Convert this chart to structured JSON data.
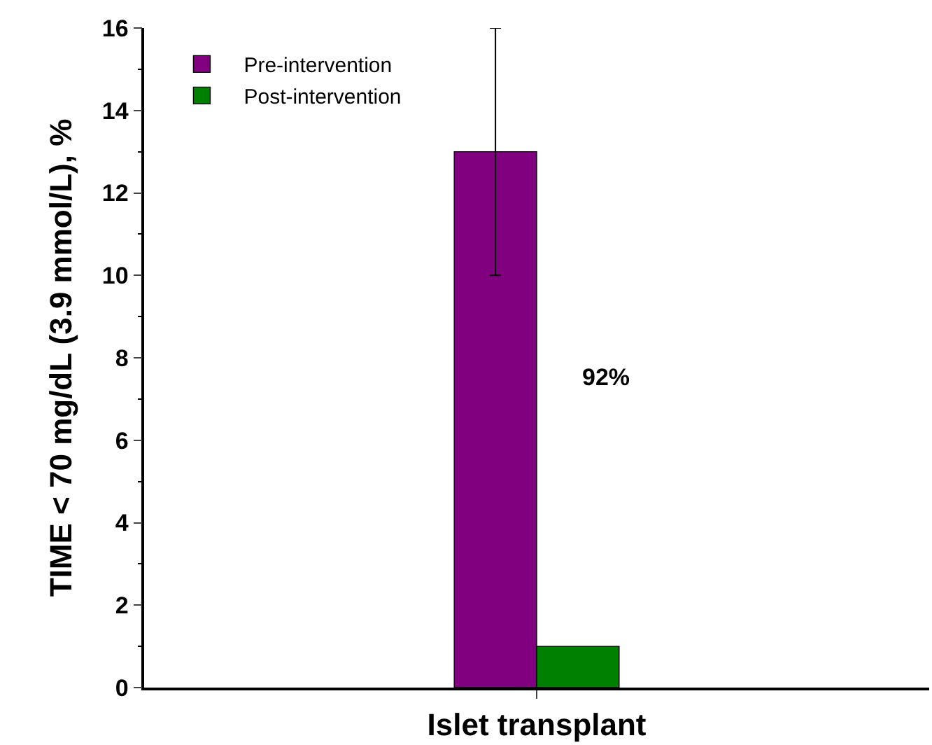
{
  "chart_data": {
    "type": "bar",
    "ylabel": "TIME < 70 mg/dL (3.9 mmol/L), %",
    "categories": [
      "Islet transplant"
    ],
    "series": [
      {
        "name": "Pre-intervention",
        "color": "#800080",
        "values": [
          13
        ],
        "errors": [
          3
        ]
      },
      {
        "name": "Post-intervention",
        "color": "#008000",
        "values": [
          1
        ],
        "errors": [
          null
        ]
      }
    ],
    "ylim": [
      0,
      16
    ],
    "yticks": [
      0,
      {
        "value": 1,
        "label": null
      },
      2,
      {
        "value": 3,
        "label": null
      },
      4,
      {
        "value": 5,
        "label": null
      },
      6,
      {
        "value": 7,
        "label": null
      },
      8,
      {
        "value": 9,
        "label": null
      },
      10,
      {
        "value": 11,
        "label": null
      },
      12,
      {
        "value": 13,
        "label": null
      },
      14,
      {
        "value": 15,
        "label": null
      },
      16
    ],
    "annotations": [
      "92%"
    ],
    "legend": "top left"
  }
}
